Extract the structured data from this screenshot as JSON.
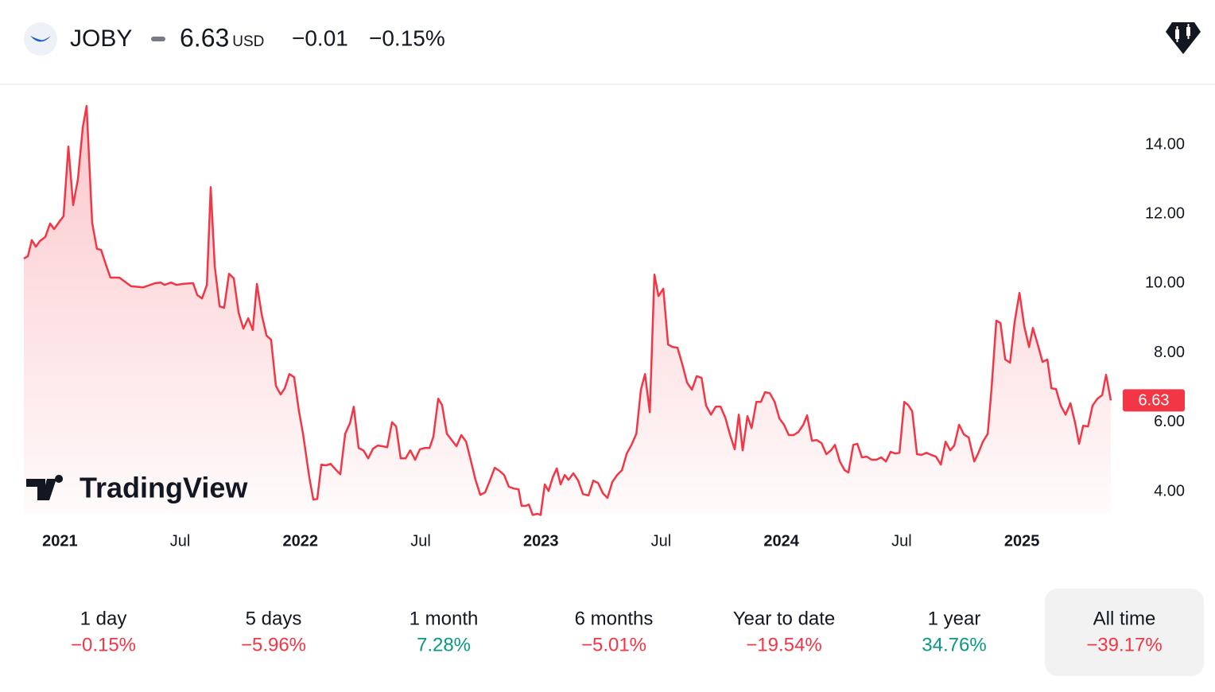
{
  "header": {
    "symbol": "JOBY",
    "price": "6.63",
    "currency": "USD",
    "change": "−0.01",
    "change_percent": "−0.15%",
    "change_color": "#f23645"
  },
  "chart_data": {
    "type": "line",
    "watermark": "TradingView",
    "color": "#f23645",
    "last_label": "6.63",
    "xlim": [
      2020.85,
      2025.37
    ],
    "ylim": [
      3.04,
      15.72
    ],
    "xticks": [
      {
        "value": 2021,
        "label": "2021"
      },
      {
        "value": 2021.5,
        "label": "Jul"
      },
      {
        "value": 2022,
        "label": "2022"
      },
      {
        "value": 2022.5,
        "label": "Jul"
      },
      {
        "value": 2023,
        "label": "2023"
      },
      {
        "value": 2023.5,
        "label": "Jul"
      },
      {
        "value": 2024,
        "label": "2024"
      },
      {
        "value": 2024.5,
        "label": "Jul"
      },
      {
        "value": 2025,
        "label": "2025"
      }
    ],
    "yticks": [
      {
        "value": 4,
        "label": "4.00"
      },
      {
        "value": 6,
        "label": "6.00"
      },
      {
        "value": 8,
        "label": "8.00"
      },
      {
        "value": 10,
        "label": "10.00"
      },
      {
        "value": 12,
        "label": "12.00"
      },
      {
        "value": 14,
        "label": "14.00"
      }
    ],
    "x": [
      2020.85,
      2020.867,
      2020.883,
      2020.9,
      2020.916,
      2020.939,
      2020.959,
      2020.976,
      2020.999,
      2021.015,
      2021.035,
      2021.055,
      2021.075,
      2021.095,
      2021.111,
      2021.134,
      2021.154,
      2021.171,
      2021.194,
      2021.21,
      2021.247,
      2021.296,
      2021.346,
      2021.396,
      2021.419,
      2021.435,
      2021.462,
      2021.485,
      2021.511,
      2021.554,
      2021.571,
      2021.591,
      2021.611,
      2021.627,
      2021.644,
      2021.664,
      2021.683,
      2021.703,
      2021.723,
      2021.743,
      2021.763,
      2021.783,
      2021.802,
      2021.819,
      2021.839,
      2021.859,
      2021.878,
      2021.898,
      2021.918,
      2021.935,
      2021.954,
      2021.974,
      2021.994,
      2022.011,
      2022.037,
      2022.054,
      2022.07,
      2022.087,
      2022.107,
      2022.126,
      2022.146,
      2022.166,
      2022.186,
      2022.206,
      2022.222,
      2022.242,
      2022.262,
      2022.282,
      2022.302,
      2022.322,
      2022.341,
      2022.361,
      2022.381,
      2022.398,
      2022.417,
      2022.437,
      2022.457,
      2022.477,
      2022.497,
      2022.517,
      2022.537,
      2022.553,
      2022.573,
      2022.589,
      2022.609,
      2022.629,
      2022.649,
      2022.669,
      2022.689,
      2022.709,
      2022.728,
      2022.748,
      2022.768,
      2022.788,
      2022.808,
      2022.828,
      2022.847,
      2022.867,
      2022.887,
      2022.907,
      2022.92,
      2022.937,
      2022.95,
      2022.966,
      2022.986,
      2022.999,
      2023.016,
      2023.032,
      2023.049,
      2023.066,
      2023.082,
      2023.099,
      2023.115,
      2023.135,
      2023.155,
      2023.175,
      2023.198,
      2023.218,
      2023.238,
      2023.258,
      2023.277,
      2023.297,
      2023.317,
      2023.337,
      2023.357,
      2023.377,
      2023.397,
      2023.416,
      2023.433,
      2023.453,
      2023.472,
      2023.489,
      2023.509,
      2023.529,
      2023.548,
      2023.568,
      2023.588,
      2023.608,
      2023.628,
      2023.648,
      2023.668,
      2023.687,
      2023.707,
      2023.727,
      2023.747,
      2023.767,
      2023.787,
      2023.806,
      2023.823,
      2023.839,
      2023.859,
      2023.876,
      2023.896,
      2023.915,
      2023.932,
      2023.952,
      2023.972,
      2023.992,
      2024.011,
      2024.031,
      2024.051,
      2024.071,
      2024.091,
      2024.107,
      2024.127,
      2024.147,
      2024.167,
      2024.187,
      2024.206,
      2024.223,
      2024.243,
      2024.263,
      2024.279,
      2024.299,
      2024.316,
      2024.335,
      2024.355,
      2024.375,
      2024.395,
      2024.415,
      2024.435,
      2024.454,
      2024.474,
      2024.491,
      2024.511,
      2024.527,
      2024.544,
      2024.564,
      2024.583,
      2024.603,
      2024.623,
      2024.643,
      2024.663,
      2024.683,
      2024.702,
      2024.719,
      2024.739,
      2024.759,
      2024.779,
      2024.802,
      2024.818,
      2024.838,
      2024.858,
      2024.874,
      2024.894,
      2024.911,
      2024.931,
      2024.951,
      2024.97,
      2024.99,
      2025.01,
      2025.03,
      2025.046,
      2025.066,
      2025.086,
      2025.106,
      2025.123,
      2025.142,
      2025.162,
      2025.182,
      2025.202,
      2025.222,
      2025.238,
      2025.255,
      2025.275,
      2025.294,
      2025.314,
      2025.334,
      2025.35,
      2025.37
    ],
    "values": [
      10.72,
      10.79,
      11.25,
      11.06,
      11.22,
      11.34,
      11.73,
      11.57,
      11.8,
      11.94,
      13.95,
      12.26,
      13.01,
      14.5,
      15.12,
      11.75,
      11.0,
      10.97,
      10.49,
      10.17,
      10.17,
      9.92,
      9.89,
      10.01,
      10.03,
      9.96,
      10.03,
      9.96,
      9.99,
      10.01,
      9.67,
      9.57,
      9.96,
      12.78,
      10.49,
      9.34,
      9.3,
      10.28,
      10.15,
      9.16,
      8.7,
      9.0,
      8.66,
      9.99,
      9.11,
      8.5,
      8.38,
      7.05,
      6.8,
      6.98,
      7.39,
      7.3,
      6.32,
      5.67,
      4.41,
      3.77,
      3.79,
      4.78,
      4.76,
      4.8,
      4.64,
      4.5,
      5.67,
      5.97,
      6.45,
      5.26,
      5.19,
      4.96,
      5.24,
      5.33,
      5.31,
      5.28,
      6.0,
      5.88,
      4.96,
      4.96,
      5.19,
      4.92,
      5.22,
      5.26,
      5.26,
      5.58,
      6.68,
      6.5,
      5.67,
      5.49,
      5.31,
      5.63,
      5.44,
      4.89,
      4.34,
      3.91,
      3.98,
      4.32,
      4.69,
      4.6,
      4.48,
      4.14,
      4.09,
      4.07,
      3.59,
      3.59,
      3.63,
      3.33,
      3.36,
      3.33,
      4.21,
      4.02,
      4.41,
      4.67,
      4.21,
      4.48,
      4.34,
      4.53,
      4.32,
      3.93,
      3.89,
      4.32,
      4.25,
      3.95,
      3.82,
      4.28,
      4.48,
      4.62,
      5.1,
      5.35,
      5.67,
      6.94,
      7.39,
      6.29,
      10.26,
      9.64,
      9.85,
      8.24,
      8.17,
      8.15,
      7.67,
      7.14,
      6.94,
      7.33,
      7.28,
      6.48,
      6.22,
      6.45,
      6.45,
      6.13,
      5.63,
      5.22,
      6.22,
      5.19,
      6.18,
      5.83,
      6.59,
      6.59,
      6.87,
      6.84,
      6.59,
      6.11,
      5.93,
      5.63,
      5.63,
      5.72,
      5.93,
      6.2,
      5.47,
      5.49,
      5.4,
      5.08,
      5.19,
      5.35,
      4.87,
      4.62,
      4.55,
      5.35,
      5.38,
      4.99,
      5.01,
      4.92,
      4.92,
      4.99,
      4.87,
      5.15,
      5.1,
      5.12,
      6.59,
      6.5,
      6.32,
      5.08,
      5.06,
      5.12,
      5.06,
      5.01,
      4.78,
      5.44,
      5.19,
      5.33,
      5.93,
      5.65,
      5.56,
      4.87,
      5.1,
      5.44,
      5.67,
      6.98,
      8.93,
      8.86,
      7.81,
      7.72,
      8.89,
      9.73,
      8.77,
      8.17,
      8.72,
      8.24,
      7.74,
      7.81,
      6.98,
      6.96,
      6.48,
      6.22,
      6.55,
      5.97,
      5.38,
      5.9,
      5.88,
      6.48,
      6.68,
      6.78,
      7.37,
      6.63
    ]
  },
  "periods": [
    {
      "label": "1 day",
      "change": "−0.15%",
      "color": "#f23645",
      "selected": false
    },
    {
      "label": "5 days",
      "change": "−5.96%",
      "color": "#f23645",
      "selected": false
    },
    {
      "label": "1 month",
      "change": "7.28%",
      "color": "#089981",
      "selected": false
    },
    {
      "label": "6 months",
      "change": "−5.01%",
      "color": "#f23645",
      "selected": false
    },
    {
      "label": "Year to date",
      "change": "−19.54%",
      "color": "#f23645",
      "selected": false
    },
    {
      "label": "1 year",
      "change": "34.76%",
      "color": "#089981",
      "selected": false
    },
    {
      "label": "All time",
      "change": "−39.17%",
      "color": "#f23645",
      "selected": true
    }
  ]
}
